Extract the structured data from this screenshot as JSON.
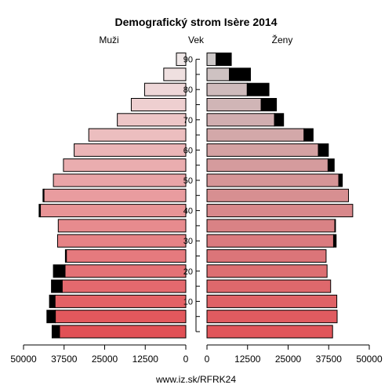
{
  "chart_data": {
    "type": "bar",
    "orientation": "horizontal-population-pyramid",
    "title": "Demografický strom Isère 2014",
    "left_label": "Muži",
    "center_label": "Vek",
    "right_label": "Ženy",
    "footer": "www.iz.sk/RFRK24",
    "age_groups": [
      "0-4",
      "5-9",
      "10-14",
      "15-19",
      "20-24",
      "25-29",
      "30-34",
      "35-39",
      "40-44",
      "45-49",
      "50-54",
      "55-59",
      "60-64",
      "65-69",
      "70-74",
      "75-79",
      "80-84",
      "85-89",
      "90+"
    ],
    "age_ticks": [
      10,
      20,
      30,
      40,
      50,
      60,
      70,
      80,
      90
    ],
    "xlim": [
      0,
      50000
    ],
    "x_ticks_left": [
      "50000",
      "37500",
      "25000",
      "12500",
      "0"
    ],
    "x_ticks_right": [
      "0",
      "12500",
      "25000",
      "37500",
      "50000"
    ],
    "series": [
      {
        "name": "Muži",
        "values": [
          38900,
          40200,
          40300,
          38100,
          37200,
          36800,
          39500,
          39300,
          44800,
          43700,
          40800,
          37700,
          34400,
          29900,
          21100,
          16800,
          12700,
          6800,
          2900
        ]
      },
      {
        "name": "Ženy",
        "values": [
          38700,
          40100,
          40000,
          38100,
          37000,
          36700,
          39000,
          39400,
          44900,
          43600,
          40600,
          37300,
          34300,
          29900,
          20800,
          16700,
          12400,
          6900,
          2800
        ]
      }
    ],
    "excess": {
      "men": [
        2300,
        2600,
        1700,
        3300,
        3600,
        300,
        0,
        0,
        400,
        300,
        0,
        0,
        0,
        0,
        0,
        0,
        0,
        0,
        0
      ],
      "women": [
        0,
        0,
        0,
        0,
        0,
        0,
        800,
        200,
        0,
        0,
        1100,
        1900,
        3100,
        2800,
        2800,
        4700,
        6700,
        6500,
        4700
      ]
    },
    "grid": false
  }
}
